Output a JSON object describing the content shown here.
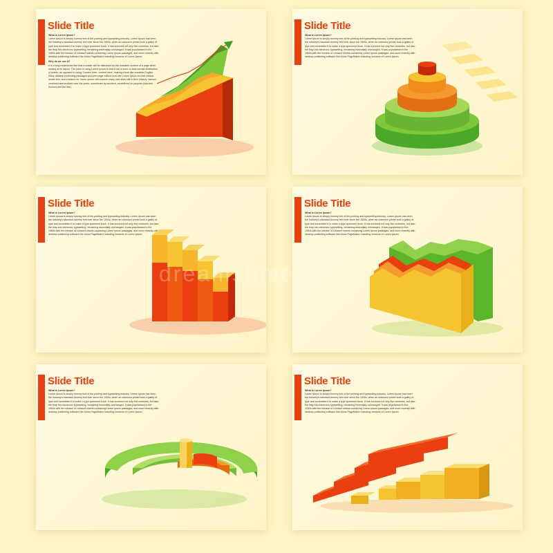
{
  "slides": [
    {
      "title": "Slide Title",
      "paragraphs": [
        {
          "heading": "What is Lorem Ipsum?",
          "text": "Lorem Ipsum is simply dummy text of the printing and typesetting industry. Lorem Ipsum has been the industry's standard dummy text ever since the 1500s, when an unknown printer took a galley of type and scrambled it to make a type specimen book. It has survived not only five centuries, but also the leap into electronic typesetting, remaining essentially unchanged. It was popularised in the 1960s with the release of Letraset sheets containing Lorem Ipsum passages, and more recently with desktop publishing software like Aldus PageMaker including versions of Lorem Ipsum."
        },
        {
          "heading": "Why do we use it?",
          "text": "It is a long established fact that a reader will be distracted by the readable content of a page when looking at its layout. The point of using Lorem Ipsum is that it has a more-or-less normal distribution of letters, as opposed to using 'Content here, content here', making it look like readable English. Many desktop publishing packages and web page editors now use Lorem Ipsum as their default model text, and a search for 'lorem ipsum' will uncover many web sites still in their infancy. Various versions have evolved over the years, sometimes by accident, sometimes on purpose (injected humour and the like)."
        }
      ]
    },
    {
      "title": "Slide Title",
      "paragraphs": [
        {
          "heading": "What is Lorem Ipsum?",
          "text": "Lorem Ipsum is simply dummy text of the printing and typesetting industry. Lorem Ipsum has been the industry's standard dummy text ever since the 1500s, when an unknown printer took a galley of type and scrambled it to make a type specimen book. It has survived not only five centuries, but also the leap into electronic typesetting, remaining essentially unchanged. It was popularised in the 1960s with the release of Letraset sheets containing Lorem Ipsum passages, and more recently with desktop publishing software like Aldus PageMaker including versions of Lorem Ipsum."
        }
      ]
    },
    {
      "title": "Slide Title",
      "paragraphs": [
        {
          "heading": "What is Lorem Ipsum?",
          "text": "Lorem Ipsum is simply dummy text of the printing and typesetting industry. Lorem Ipsum has been the industry's standard dummy text ever since the 1500s, when an unknown printer took a galley of type and scrambled it to make a type specimen book. It has survived not only five centuries, but also the leap into electronic typesetting, remaining essentially unchanged. It was popularised in the 1960s with the release of Letraset sheets containing Lorem Ipsum passages, and more recently with desktop publishing software like Aldus PageMaker including versions of Lorem Ipsum."
        }
      ]
    },
    {
      "title": "Slide Title",
      "paragraphs": [
        {
          "heading": "What is Lorem Ipsum?",
          "text": "Lorem Ipsum is simply dummy text of the printing and typesetting industry. Lorem Ipsum has been the industry's standard dummy text ever since the 1500s, when an unknown printer took a galley of type and scrambled it to make a type specimen book. It has survived not only five centuries, but also the leap into electronic typesetting, remaining essentially unchanged. It was popularised in the 1960s with the release of Letraset sheets containing Lorem Ipsum passages, and more recently with desktop publishing software like Aldus PageMaker including versions of Lorem Ipsum."
        }
      ]
    },
    {
      "title": "Slide Title",
      "paragraphs": [
        {
          "heading": "What is Lorem Ipsum?",
          "text": "Lorem Ipsum is simply dummy text of the printing and typesetting industry. Lorem Ipsum has been the industry's standard dummy text ever since the 1500s, when an unknown printer took a galley of type and scrambled it to make a type specimen book. It has survived not only five centuries, but also the leap into electronic typesetting, remaining essentially unchanged. It was popularised in the 1960s with the release of Letraset sheets containing Lorem Ipsum passages, and more recently with desktop publishing software like Aldus PageMaker including versions of Lorem Ipsum."
        }
      ]
    },
    {
      "title": "Slide Title",
      "paragraphs": [
        {
          "heading": "What is Lorem Ipsum?",
          "text": "Lorem Ipsum is simply dummy text of the printing and typesetting industry. Lorem Ipsum has been the industry's standard dummy text ever since the 1500s, when an unknown printer took a galley of type and scrambled it to make a type specimen book. It has survived not only five centuries, but also the leap into electronic typesetting, remaining essentially unchanged. It was popularised in the 1960s with the release of Letraset sheets containing Lorem Ipsum passages, and more recently with desktop publishing software like Aldus PageMaker including versions of Lorem Ipsum."
        }
      ]
    }
  ],
  "watermark": "dreamstime",
  "colors": {
    "accent": "#e8410f",
    "red": "#ea3f10",
    "orange": "#f47c18",
    "yellow": "#f7c431",
    "green": "#7ec63a",
    "dark_green": "#3c9e22"
  }
}
